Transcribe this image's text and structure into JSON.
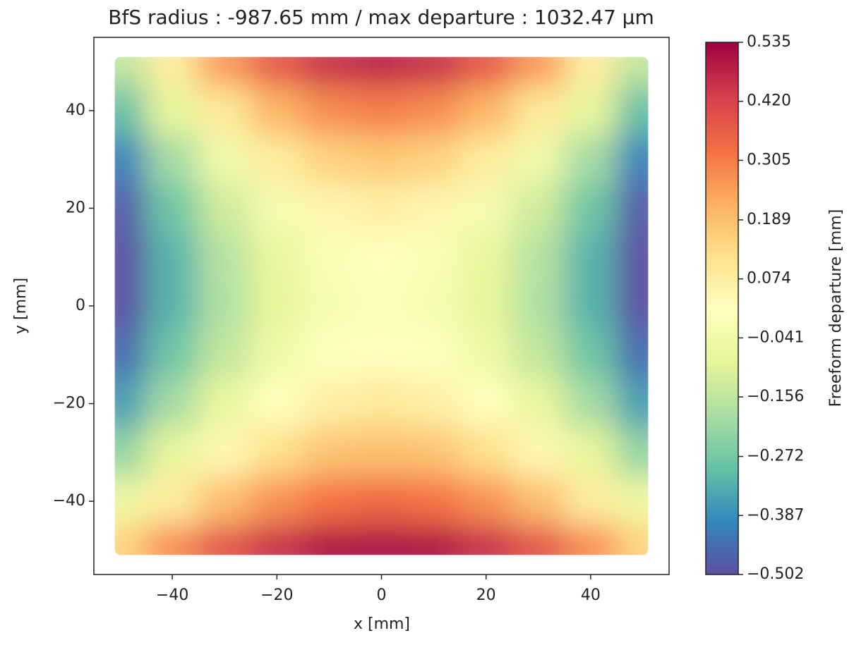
{
  "chart_data": {
    "type": "heatmap",
    "title": "BfS radius : -987.65 mm /  max departure : 1032.47 µm",
    "xlabel": "x [mm]",
    "ylabel": "y [mm]",
    "colorbar_label": "Freeform departure [mm]",
    "x": [
      -50,
      -40,
      -30,
      -20,
      -10,
      0,
      10,
      20,
      30,
      40,
      50
    ],
    "y": [
      50,
      40,
      30,
      20,
      10,
      0,
      -10,
      -20,
      -30,
      -40,
      -50
    ],
    "z": [
      [
        -0.15,
        0.08,
        0.26,
        0.38,
        0.46,
        0.48,
        0.46,
        0.38,
        0.26,
        0.08,
        -0.15
      ],
      [
        -0.3,
        -0.08,
        0.09,
        0.21,
        0.28,
        0.3,
        0.28,
        0.21,
        0.09,
        -0.08,
        -0.3
      ],
      [
        -0.41,
        -0.2,
        -0.04,
        0.08,
        0.15,
        0.17,
        0.15,
        0.08,
        -0.04,
        -0.2,
        -0.41
      ],
      [
        -0.48,
        -0.28,
        -0.13,
        -0.02,
        0.05,
        0.07,
        0.05,
        -0.02,
        -0.13,
        -0.28,
        -0.48
      ],
      [
        -0.5,
        -0.32,
        -0.17,
        -0.07,
        -0.01,
        0.02,
        -0.01,
        -0.07,
        -0.17,
        -0.32,
        -0.5
      ],
      [
        -0.5,
        -0.32,
        -0.18,
        -0.08,
        -0.02,
        0.0,
        -0.02,
        -0.08,
        -0.18,
        -0.32,
        -0.5
      ],
      [
        -0.45,
        -0.28,
        -0.15,
        -0.05,
        0.01,
        0.02,
        0.01,
        -0.05,
        -0.15,
        -0.28,
        -0.45
      ],
      [
        -0.36,
        -0.2,
        -0.07,
        0.02,
        0.07,
        0.09,
        0.07,
        0.02,
        -0.07,
        -0.2,
        -0.36
      ],
      [
        -0.23,
        -0.08,
        0.04,
        0.12,
        0.18,
        0.19,
        0.18,
        0.12,
        0.04,
        -0.08,
        -0.23
      ],
      [
        -0.06,
        0.08,
        0.19,
        0.27,
        0.32,
        0.34,
        0.32,
        0.27,
        0.19,
        0.08,
        -0.06
      ],
      [
        0.15,
        0.28,
        0.39,
        0.46,
        0.51,
        0.52,
        0.51,
        0.46,
        0.39,
        0.28,
        0.15
      ]
    ],
    "xlim": [
      -55,
      55
    ],
    "ylim": [
      -55,
      55
    ],
    "xticks": [
      {
        "value": -40,
        "label": "−40"
      },
      {
        "value": -20,
        "label": "−20"
      },
      0,
      20,
      40
    ],
    "yticks": [
      {
        "value": -40,
        "label": "−40"
      },
      {
        "value": -20,
        "label": "−20"
      },
      0,
      20,
      40
    ],
    "zlim": [
      -0.502,
      0.535
    ],
    "zticks": [
      {
        "value": -0.502,
        "label": "−0.502"
      },
      {
        "value": -0.387,
        "label": "−0.387"
      },
      {
        "value": -0.272,
        "label": "−0.272"
      },
      {
        "value": -0.156,
        "label": "−0.156"
      },
      {
        "value": -0.041,
        "label": "−0.041"
      },
      0.074,
      0.189,
      0.305,
      {
        "value": 0.42,
        "label": "0.420"
      },
      0.535
    ],
    "colormap": [
      "#5e4fa2",
      "#3288bd",
      "#66c2a5",
      "#abdda4",
      "#e6f598",
      "#ffffbf",
      "#fee08b",
      "#fdae61",
      "#f46d43",
      "#d53e4f",
      "#9e0142"
    ]
  }
}
